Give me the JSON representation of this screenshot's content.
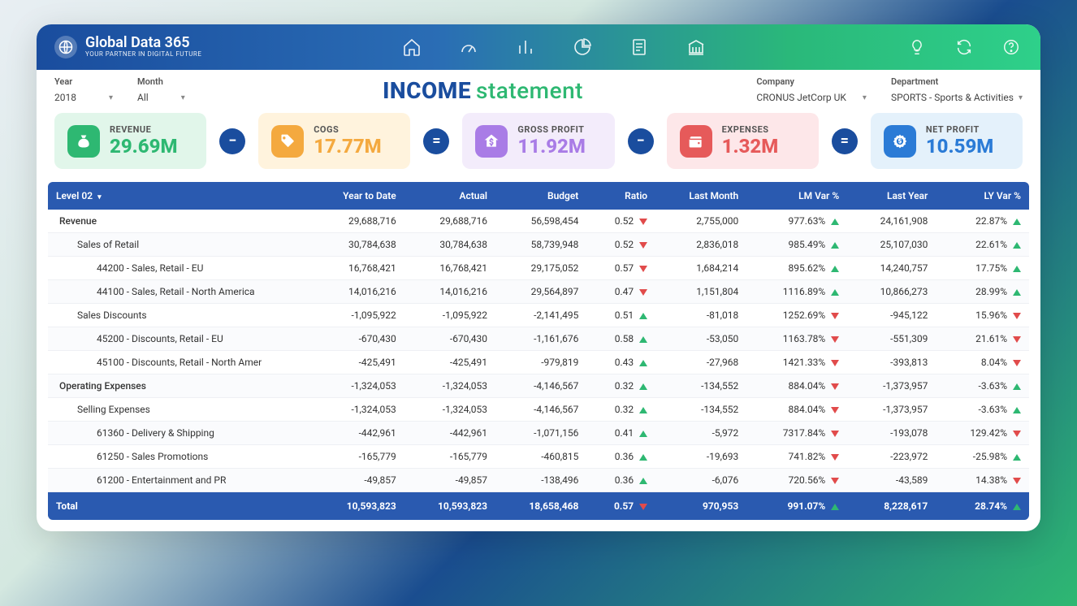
{
  "brand": {
    "name": "Global Data 365",
    "tagline": "YOUR PARTNER IN DIGITAL FUTURE"
  },
  "title": {
    "bold": "INCOME",
    "light": "statement"
  },
  "filters": {
    "year": {
      "label": "Year",
      "value": "2018"
    },
    "month": {
      "label": "Month",
      "value": "All"
    },
    "company": {
      "label": "Company",
      "value": "CRONUS JetCorp UK"
    },
    "department": {
      "label": "Department",
      "value": "SPORTS - Sports & Activities"
    }
  },
  "kpi": {
    "revenue": {
      "label": "REVENUE",
      "value": "29.69M",
      "bg": "#e1f6ea",
      "icon_bg": "#2eb872",
      "val_color": "#2eb872"
    },
    "cogs": {
      "label": "COGS",
      "value": "17.77M",
      "bg": "#fff3dd",
      "icon_bg": "#f4a93f",
      "val_color": "#f4a93f"
    },
    "gross_profit": {
      "label": "GROSS PROFIT",
      "value": "11.92M",
      "bg": "#f3ecfb",
      "icon_bg": "#a97ce6",
      "val_color": "#a97ce6"
    },
    "expenses": {
      "label": "EXPENSES",
      "value": "1.32M",
      "bg": "#fde7e9",
      "icon_bg": "#e65a5a",
      "val_color": "#e65a5a"
    },
    "net_profit": {
      "label": "NET PROFIT",
      "value": "10.59M",
      "bg": "#e4f1fb",
      "icon_bg": "#2b7bd6",
      "val_color": "#2b7bd6"
    },
    "op_minus_color": "#1a4d9e",
    "op_equal_color": "#1a4d9e"
  },
  "columns": [
    "Level 02",
    "Year to Date",
    "Actual",
    "Budget",
    "Ratio",
    "Last Month",
    "LM Var %",
    "Last Year",
    "LY Var %"
  ],
  "rows": [
    {
      "level": 0,
      "name": "Revenue",
      "ytd": "29,688,716",
      "actual": "29,688,716",
      "budget": "56,598,454",
      "ratio": "0.52",
      "ratio_dir": "down",
      "lm": "2,755,000",
      "lmv": "977.63%",
      "lmv_dir": "up",
      "ly": "24,161,908",
      "lyv": "22.87%",
      "lyv_dir": "up"
    },
    {
      "level": 1,
      "name": "Sales of Retail",
      "ytd": "30,784,638",
      "actual": "30,784,638",
      "budget": "58,739,948",
      "ratio": "0.52",
      "ratio_dir": "down",
      "lm": "2,836,018",
      "lmv": "985.49%",
      "lmv_dir": "up",
      "ly": "25,107,030",
      "lyv": "22.61%",
      "lyv_dir": "up"
    },
    {
      "level": 2,
      "name": "44200 - Sales, Retail - EU",
      "ytd": "16,768,421",
      "actual": "16,768,421",
      "budget": "29,175,052",
      "ratio": "0.57",
      "ratio_dir": "down",
      "lm": "1,684,214",
      "lmv": "895.62%",
      "lmv_dir": "up",
      "ly": "14,240,757",
      "lyv": "17.75%",
      "lyv_dir": "up"
    },
    {
      "level": 2,
      "name": "44100 - Sales, Retail - North America",
      "ytd": "14,016,216",
      "actual": "14,016,216",
      "budget": "29,564,897",
      "ratio": "0.47",
      "ratio_dir": "down",
      "lm": "1,151,804",
      "lmv": "1116.89%",
      "lmv_dir": "up",
      "ly": "10,866,273",
      "lyv": "28.99%",
      "lyv_dir": "up"
    },
    {
      "level": 1,
      "name": "Sales Discounts",
      "ytd": "-1,095,922",
      "actual": "-1,095,922",
      "budget": "-2,141,495",
      "ratio": "0.51",
      "ratio_dir": "up",
      "lm": "-81,018",
      "lmv": "1252.69%",
      "lmv_dir": "down",
      "ly": "-945,122",
      "lyv": "15.96%",
      "lyv_dir": "down"
    },
    {
      "level": 2,
      "name": "45200 - Discounts, Retail - EU",
      "ytd": "-670,430",
      "actual": "-670,430",
      "budget": "-1,161,676",
      "ratio": "0.58",
      "ratio_dir": "up",
      "lm": "-53,050",
      "lmv": "1163.78%",
      "lmv_dir": "down",
      "ly": "-551,309",
      "lyv": "21.61%",
      "lyv_dir": "down"
    },
    {
      "level": 2,
      "name": "45100 - Discounts, Retail - North Amer",
      "ytd": "-425,491",
      "actual": "-425,491",
      "budget": "-979,819",
      "ratio": "0.43",
      "ratio_dir": "up",
      "lm": "-27,968",
      "lmv": "1421.33%",
      "lmv_dir": "down",
      "ly": "-393,813",
      "lyv": "8.04%",
      "lyv_dir": "down"
    },
    {
      "level": 0,
      "name": "Operating Expenses",
      "ytd": "-1,324,053",
      "actual": "-1,324,053",
      "budget": "-4,146,567",
      "ratio": "0.32",
      "ratio_dir": "up",
      "lm": "-134,552",
      "lmv": "884.04%",
      "lmv_dir": "down",
      "ly": "-1,373,957",
      "lyv": "-3.63%",
      "lyv_dir": "up"
    },
    {
      "level": 1,
      "name": "Selling Expenses",
      "ytd": "-1,324,053",
      "actual": "-1,324,053",
      "budget": "-4,146,567",
      "ratio": "0.32",
      "ratio_dir": "up",
      "lm": "-134,552",
      "lmv": "884.04%",
      "lmv_dir": "down",
      "ly": "-1,373,957",
      "lyv": "-3.63%",
      "lyv_dir": "up"
    },
    {
      "level": 2,
      "name": "61360 - Delivery & Shipping",
      "ytd": "-442,961",
      "actual": "-442,961",
      "budget": "-1,071,156",
      "ratio": "0.41",
      "ratio_dir": "up",
      "lm": "-5,972",
      "lmv": "7317.84%",
      "lmv_dir": "down",
      "ly": "-193,078",
      "lyv": "129.42%",
      "lyv_dir": "down"
    },
    {
      "level": 2,
      "name": "61250 - Sales Promotions",
      "ytd": "-165,779",
      "actual": "-165,779",
      "budget": "-460,815",
      "ratio": "0.36",
      "ratio_dir": "up",
      "lm": "-19,693",
      "lmv": "741.82%",
      "lmv_dir": "down",
      "ly": "-223,972",
      "lyv": "-25.98%",
      "lyv_dir": "up"
    },
    {
      "level": 2,
      "name": "61200 - Entertainment and PR",
      "ytd": "-49,857",
      "actual": "-49,857",
      "budget": "-138,496",
      "ratio": "0.36",
      "ratio_dir": "up",
      "lm": "-6,076",
      "lmv": "720.56%",
      "lmv_dir": "down",
      "ly": "-43,589",
      "lyv": "14.38%",
      "lyv_dir": "down"
    }
  ],
  "total": {
    "label": "Total",
    "ytd": "10,593,823",
    "actual": "10,593,823",
    "budget": "18,658,468",
    "ratio": "0.57",
    "ratio_dir": "down",
    "lm": "970,953",
    "lmv": "991.07%",
    "lmv_dir": "up",
    "ly": "8,228,617",
    "lyv": "28.74%",
    "lyv_dir": "up"
  },
  "colors": {
    "header_bg": "#2a5ab0",
    "tri_green": "#2eb872",
    "tri_red": "#e14b4b"
  }
}
